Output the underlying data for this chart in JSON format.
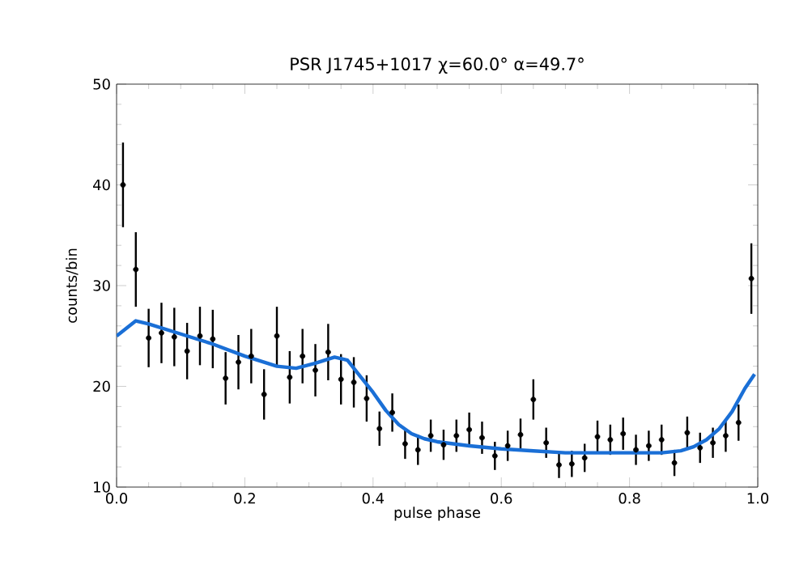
{
  "chart_data": {
    "type": "scatter",
    "title": "PSR J1745+1017   χ=60.0° α=49.7°",
    "xlabel": "pulse phase",
    "ylabel": "counts/bin",
    "xlim": [
      0,
      1
    ],
    "ylim": [
      10,
      50
    ],
    "xticks": [
      {
        "value": 0,
        "label": "0.0"
      },
      {
        "value": 0.2,
        "label": "0.2"
      },
      {
        "value": 0.4,
        "label": "0.4"
      },
      {
        "value": 0.6,
        "label": "0.6"
      },
      {
        "value": 0.8,
        "label": "0.8"
      },
      {
        "value": 1,
        "label": "1.0"
      }
    ],
    "yticks": [
      10,
      20,
      30,
      40,
      50
    ],
    "grid": false,
    "series": [
      {
        "color": "#000000",
        "marker": "circle",
        "x": [
          0.01,
          0.03,
          0.05,
          0.07,
          0.09,
          0.11,
          0.13,
          0.15,
          0.17,
          0.19,
          0.21,
          0.23,
          0.25,
          0.27,
          0.29,
          0.31,
          0.33,
          0.35,
          0.37,
          0.39,
          0.41,
          0.43,
          0.45,
          0.47,
          0.49,
          0.51,
          0.53,
          0.55,
          0.57,
          0.59,
          0.61,
          0.63,
          0.65,
          0.67,
          0.69,
          0.71,
          0.73,
          0.75,
          0.77,
          0.79,
          0.81,
          0.83,
          0.85,
          0.87,
          0.89,
          0.91,
          0.93,
          0.95,
          0.97,
          0.99
        ],
        "values": [
          40.0,
          31.6,
          24.8,
          25.3,
          24.9,
          23.5,
          25.0,
          24.7,
          20.8,
          22.4,
          23.0,
          19.2,
          25.0,
          20.9,
          23.0,
          21.6,
          23.4,
          20.7,
          20.4,
          18.8,
          15.8,
          17.4,
          14.3,
          13.7,
          15.1,
          14.2,
          15.1,
          15.7,
          14.9,
          13.1,
          14.1,
          15.2,
          18.7,
          14.4,
          12.2,
          12.3,
          12.9,
          15.0,
          14.7,
          15.3,
          13.7,
          14.1,
          14.7,
          12.4,
          15.4,
          13.9,
          14.4,
          15.1,
          16.4,
          30.7
        ],
        "errors": [
          4.2,
          3.7,
          2.9,
          3.0,
          2.9,
          2.8,
          2.9,
          2.9,
          2.6,
          2.7,
          2.7,
          2.5,
          2.9,
          2.6,
          2.7,
          2.6,
          2.8,
          2.5,
          2.5,
          2.3,
          1.7,
          1.9,
          1.5,
          1.5,
          1.6,
          1.5,
          1.6,
          1.7,
          1.6,
          1.4,
          1.5,
          1.6,
          2.0,
          1.5,
          1.3,
          1.3,
          1.4,
          1.6,
          1.5,
          1.6,
          1.5,
          1.5,
          1.5,
          1.3,
          1.6,
          1.5,
          1.5,
          1.6,
          1.8,
          3.5
        ]
      },
      {
        "type": "line",
        "color": "#1a6fd6",
        "marker": "none",
        "line_style": "solid",
        "x": [
          0,
          0.03,
          0.05,
          0.1,
          0.15,
          0.2,
          0.25,
          0.28,
          0.31,
          0.34,
          0.36,
          0.38,
          0.4,
          0.42,
          0.44,
          0.46,
          0.48,
          0.5,
          0.55,
          0.6,
          0.65,
          0.7,
          0.8,
          0.85,
          0.88,
          0.9,
          0.92,
          0.94,
          0.96,
          0.98,
          0.995
        ],
        "values": [
          25.0,
          26.5,
          26.2,
          25.2,
          24.2,
          23.0,
          22.0,
          21.8,
          22.3,
          22.9,
          22.6,
          21.0,
          19.4,
          17.6,
          16.2,
          15.3,
          14.8,
          14.5,
          14.1,
          13.8,
          13.6,
          13.4,
          13.4,
          13.4,
          13.6,
          14.0,
          14.7,
          15.8,
          17.5,
          19.8,
          21.2
        ]
      }
    ]
  }
}
